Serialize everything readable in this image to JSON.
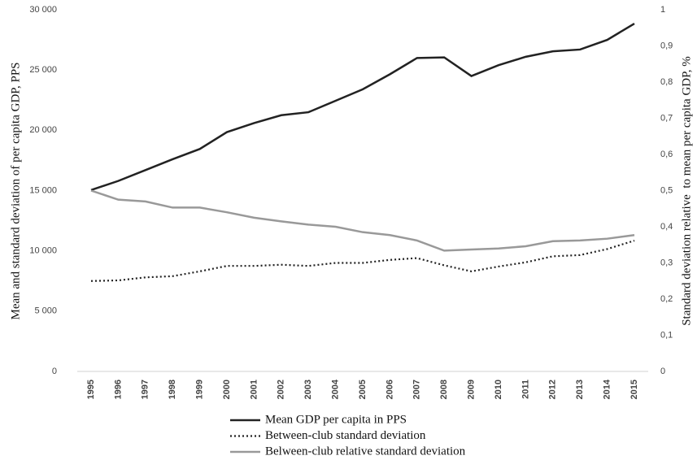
{
  "chart_data": {
    "type": "line",
    "y_label": "Mean and standard deviation of per capita GDP, PPS",
    "y2_label": "Standard deviation relative  to mean per capita GDP, %",
    "categories": [
      "1995",
      "1996",
      "1997",
      "1998",
      "1999",
      "2000",
      "2001",
      "2002",
      "2003",
      "2004",
      "2005",
      "2006",
      "2007",
      "2008",
      "2009",
      "2010",
      "2011",
      "2012",
      "2013",
      "2014",
      "2015"
    ],
    "ylim": [
      0,
      30000
    ],
    "yticks": [
      0,
      {
        "value": 5000,
        "label": "5 000"
      },
      {
        "value": 10000,
        "label": "10 000"
      },
      {
        "value": 15000,
        "label": "15 000"
      },
      {
        "value": 20000,
        "label": "20 000"
      },
      {
        "value": 25000,
        "label": "25 000"
      },
      {
        "value": 30000,
        "label": "30 000"
      }
    ],
    "y2lim": [
      0,
      1
    ],
    "y2ticks": [
      0,
      {
        "value": 0.1,
        "label": "0,1"
      },
      {
        "value": 0.2,
        "label": "0,2"
      },
      {
        "value": 0.3,
        "label": "0,3"
      },
      {
        "value": 0.4,
        "label": "0,4"
      },
      {
        "value": 0.5,
        "label": "0,5"
      },
      {
        "value": 0.6,
        "label": "0,6"
      },
      {
        "value": 0.7,
        "label": "0,7"
      },
      {
        "value": 0.8,
        "label": "0,8"
      },
      {
        "value": 0.9,
        "label": "0,9"
      },
      1
    ],
    "grid": false,
    "legend": "bottom",
    "series": [
      {
        "name": "Mean GDP per capita in PPS",
        "color": "#222222",
        "line_style": "solid",
        "values": [
          15050,
          15800,
          16700,
          17600,
          18450,
          19850,
          20600,
          21250,
          21500,
          22450,
          23400,
          24650,
          26000,
          26050,
          24500,
          25400,
          26100,
          26550,
          26700,
          27500,
          28850
        ]
      },
      {
        "name": "Between-club standard deviation",
        "color": "#222222",
        "line_style": "dotted",
        "values": [
          7500,
          7550,
          7800,
          7900,
          8300,
          8750,
          8750,
          8850,
          8750,
          9000,
          9000,
          9250,
          9400,
          8800,
          8300,
          8700,
          9050,
          9550,
          9650,
          10150,
          10850
        ]
      },
      {
        "name": "Belween-club relative standard deviation",
        "color": "#999999",
        "line_style": "solid",
        "axis": "y2",
        "values": [
          0.5,
          0.475,
          0.47,
          0.453,
          0.453,
          0.44,
          0.425,
          0.415,
          0.406,
          0.4,
          0.385,
          0.377,
          0.362,
          0.334,
          0.337,
          0.34,
          0.346,
          0.36,
          0.362,
          0.367,
          0.377
        ]
      }
    ]
  }
}
